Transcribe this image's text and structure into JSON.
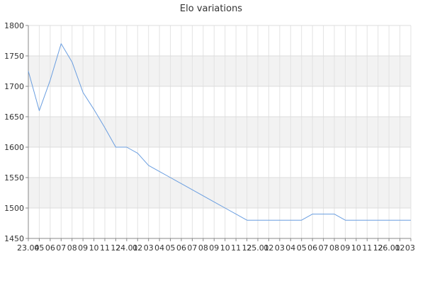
{
  "chart_data": {
    "type": "line",
    "title": "Elo variations",
    "xlabel": "",
    "ylabel": "",
    "ylim": [
      1450,
      1800
    ],
    "y_ticks": [
      1450,
      1500,
      1550,
      1600,
      1650,
      1700,
      1750,
      1800
    ],
    "grid": true,
    "banded_background": true,
    "line_color": "#6a9ee0",
    "band_color": "#f2f2f2",
    "x_labels": [
      "23.04",
      "05",
      "06",
      "07",
      "08",
      "09",
      "10",
      "11",
      "12",
      "24.01",
      "02",
      "03",
      "04",
      "05",
      "06",
      "07",
      "08",
      "09",
      "10",
      "11",
      "12",
      "25.01",
      "02",
      "03",
      "04",
      "05",
      "06",
      "07",
      "08",
      "09",
      "10",
      "11",
      "12",
      "26.01",
      "02",
      "03"
    ],
    "series": [
      {
        "values": [
          1725,
          1660,
          1710,
          1770,
          1740,
          1690,
          1662,
          1632,
          1600,
          1600,
          1590,
          1570,
          1560,
          1550,
          1540,
          1530,
          1520,
          1510,
          1500,
          1490,
          1480,
          1480,
          1480,
          1480,
          1480,
          1480,
          1490,
          1490,
          1490,
          1480,
          1480,
          1480,
          1480,
          1480,
          1480,
          1480
        ]
      }
    ]
  }
}
